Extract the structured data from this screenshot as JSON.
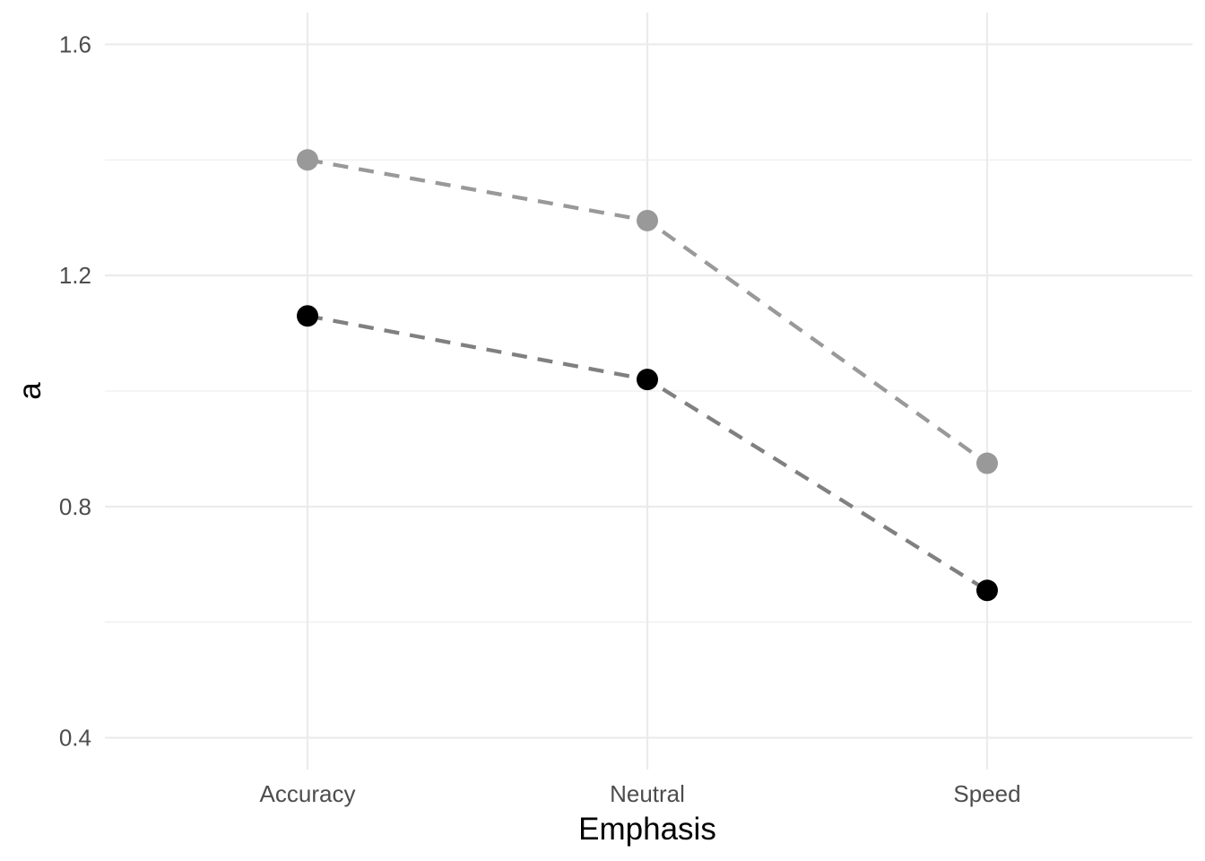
{
  "chart_data": {
    "type": "line",
    "categories": [
      "Accuracy",
      "Neutral",
      "Speed"
    ],
    "series": [
      {
        "values": [
          1.4,
          1.295,
          0.875
        ],
        "color": "#999999",
        "line_color": "#999999",
        "line_style": "dashed"
      },
      {
        "values": [
          1.13,
          1.02,
          0.655
        ],
        "color": "#000000",
        "line_color": "#808080",
        "line_style": "dashed"
      }
    ],
    "xlabel": "Emphasis",
    "ylabel": "a",
    "ylim": [
      0.345,
      1.655
    ],
    "yticks": [
      0.4,
      0.8,
      1.2,
      1.6
    ],
    "ytick_labels": [
      "0.4",
      "0.8",
      "1.2",
      "1.6"
    ],
    "yminor": [
      0.6,
      1.0,
      1.4
    ],
    "grid": true,
    "legend": "none"
  }
}
